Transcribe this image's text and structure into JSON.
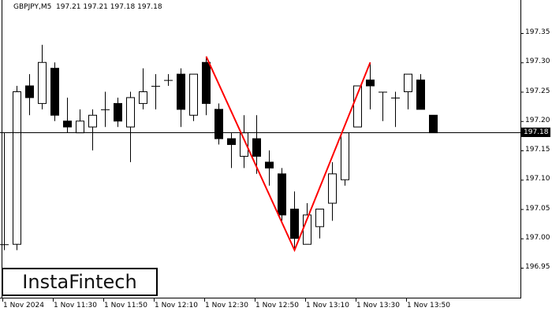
{
  "header": {
    "symbol": "GBPJPY,M5",
    "ohlc": "197.21 197.21 197.18 197.18"
  },
  "logo": {
    "text": "InstaFintech"
  },
  "current_price": {
    "label": "197.18",
    "value": 197.18
  },
  "colors": {
    "pattern_line": "#ff0000",
    "bull_body": "#ffffff",
    "bear_body": "#000000",
    "axis": "#000000"
  },
  "chart_data": {
    "type": "candlestick",
    "title": "GBPJPY,M5 197.21 197.21 197.18 197.18",
    "xlabel": "",
    "ylabel": "",
    "ylim": [
      196.9,
      197.4
    ],
    "y_ticks": [
      "197.35",
      "197.30",
      "197.25",
      "197.20",
      "197.15",
      "197.10",
      "197.05",
      "197.00",
      "196.95"
    ],
    "x_ticks": [
      "1 Nov 2024",
      "1 Nov 11:30",
      "1 Nov 11:50",
      "1 Nov 12:10",
      "1 Nov 12:30",
      "1 Nov 12:50",
      "1 Nov 13:10",
      "1 Nov 13:30",
      "1 Nov 13:50"
    ],
    "horizontal_line": 197.18,
    "grid": false,
    "candles": [
      {
        "o": 196.99,
        "h": 197.18,
        "l": 196.98,
        "c": 196.99
      },
      {
        "o": 196.99,
        "h": 197.26,
        "l": 196.98,
        "c": 197.25
      },
      {
        "o": 197.26,
        "h": 197.28,
        "l": 197.21,
        "c": 197.24
      },
      {
        "o": 197.23,
        "h": 197.33,
        "l": 197.22,
        "c": 197.3
      },
      {
        "o": 197.29,
        "h": 197.3,
        "l": 197.2,
        "c": 197.21
      },
      {
        "o": 197.2,
        "h": 197.24,
        "l": 197.18,
        "c": 197.19
      },
      {
        "o": 197.18,
        "h": 197.22,
        "l": 197.18,
        "c": 197.2
      },
      {
        "o": 197.19,
        "h": 197.22,
        "l": 197.15,
        "c": 197.21
      },
      {
        "o": 197.22,
        "h": 197.25,
        "l": 197.19,
        "c": 197.22
      },
      {
        "o": 197.23,
        "h": 197.24,
        "l": 197.19,
        "c": 197.2
      },
      {
        "o": 197.19,
        "h": 197.25,
        "l": 197.13,
        "c": 197.24
      },
      {
        "o": 197.23,
        "h": 197.29,
        "l": 197.22,
        "c": 197.25
      },
      {
        "o": 197.26,
        "h": 197.28,
        "l": 197.22,
        "c": 197.26
      },
      {
        "o": 197.27,
        "h": 197.28,
        "l": 197.26,
        "c": 197.27
      },
      {
        "o": 197.28,
        "h": 197.29,
        "l": 197.19,
        "c": 197.22
      },
      {
        "o": 197.21,
        "h": 197.28,
        "l": 197.2,
        "c": 197.28
      },
      {
        "o": 197.3,
        "h": 197.31,
        "l": 197.21,
        "c": 197.23
      },
      {
        "o": 197.22,
        "h": 197.23,
        "l": 197.16,
        "c": 197.17
      },
      {
        "o": 197.17,
        "h": 197.18,
        "l": 197.12,
        "c": 197.16
      },
      {
        "o": 197.14,
        "h": 197.21,
        "l": 197.12,
        "c": 197.18
      },
      {
        "o": 197.17,
        "h": 197.21,
        "l": 197.11,
        "c": 197.14
      },
      {
        "o": 197.13,
        "h": 197.15,
        "l": 197.09,
        "c": 197.12
      },
      {
        "o": 197.11,
        "h": 197.12,
        "l": 197.03,
        "c": 197.04
      },
      {
        "o": 197.05,
        "h": 197.08,
        "l": 196.98,
        "c": 197.0
      },
      {
        "o": 196.99,
        "h": 197.06,
        "l": 196.99,
        "c": 197.04
      },
      {
        "o": 197.02,
        "h": 197.05,
        "l": 197.0,
        "c": 197.05
      },
      {
        "o": 197.06,
        "h": 197.13,
        "l": 197.03,
        "c": 197.11
      },
      {
        "o": 197.1,
        "h": 197.18,
        "l": 197.09,
        "c": 197.18
      },
      {
        "o": 197.19,
        "h": 197.26,
        "l": 197.19,
        "c": 197.26
      },
      {
        "o": 197.27,
        "h": 197.3,
        "l": 197.22,
        "c": 197.26
      },
      {
        "o": 197.25,
        "h": 197.25,
        "l": 197.2,
        "c": 197.25
      },
      {
        "o": 197.24,
        "h": 197.25,
        "l": 197.19,
        "c": 197.24
      },
      {
        "o": 197.25,
        "h": 197.28,
        "l": 197.22,
        "c": 197.28
      },
      {
        "o": 197.27,
        "h": 197.28,
        "l": 197.22,
        "c": 197.22
      },
      {
        "o": 197.21,
        "h": 197.21,
        "l": 197.18,
        "c": 197.18
      }
    ],
    "pattern": {
      "name": "Double Top / V pattern lines",
      "points": [
        {
          "candle_index": 16,
          "price": 197.31
        },
        {
          "candle_index": 23,
          "price": 196.98
        },
        {
          "candle_index": 29,
          "price": 197.3
        }
      ]
    }
  }
}
